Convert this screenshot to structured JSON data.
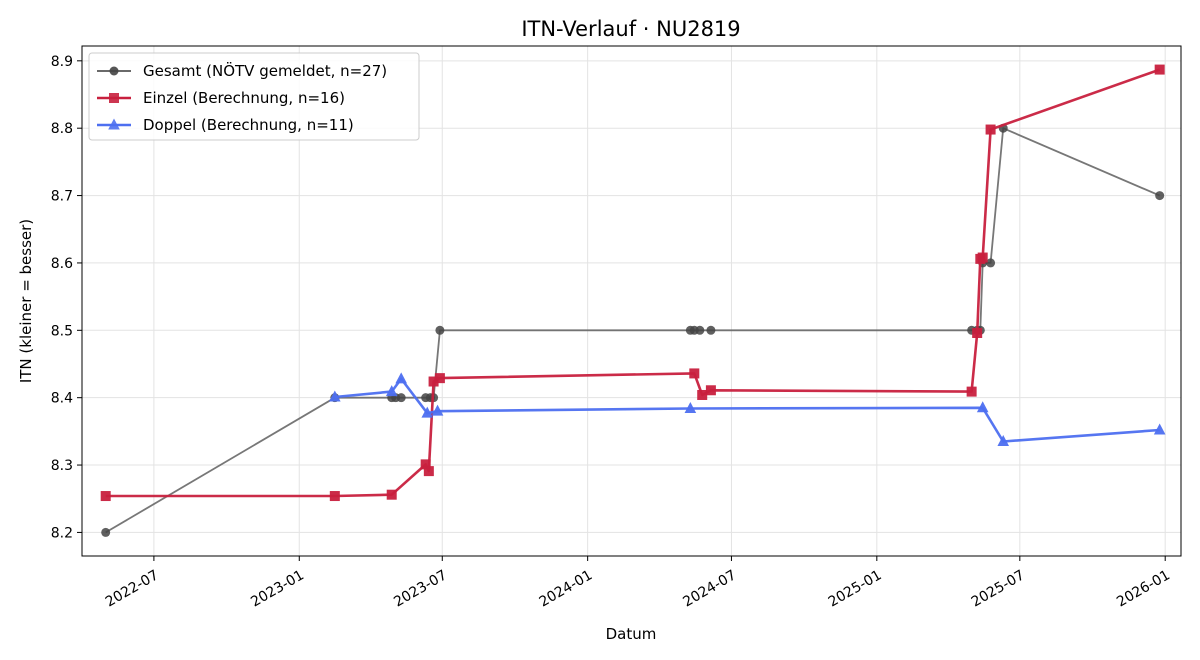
{
  "chart_data": {
    "type": "line",
    "title": "ITN-Verlauf · NU2819",
    "xlabel": "Datum",
    "ylabel": "ITN  (kleiner = besser)",
    "xlim": [
      "2022-04-01",
      "2026-01-21"
    ],
    "ylim": [
      8.165,
      8.922
    ],
    "x_ticks": [
      "2022-07",
      "2023-01",
      "2023-07",
      "2024-01",
      "2024-07",
      "2025-01",
      "2025-07",
      "2026-01"
    ],
    "y_ticks": [
      "8.2",
      "8.3",
      "8.4",
      "8.5",
      "8.6",
      "8.7",
      "8.8",
      "8.9"
    ],
    "grid": true,
    "legend_position": "top-left",
    "series": [
      {
        "name": "Gesamt (NÖTV gemeldet, n=27)",
        "color": "#555555",
        "marker": "circle",
        "points": [
          [
            "2022-05-01",
            8.2
          ],
          [
            "2023-02-15",
            8.4
          ],
          [
            "2023-04-28",
            8.4
          ],
          [
            "2023-05-03",
            8.4
          ],
          [
            "2023-05-10",
            8.4
          ],
          [
            "2023-06-10",
            8.4
          ],
          [
            "2023-06-16",
            8.4
          ],
          [
            "2023-06-20",
            8.4
          ],
          [
            "2023-06-28",
            8.5
          ],
          [
            "2024-05-10",
            8.5
          ],
          [
            "2024-05-15",
            8.5
          ],
          [
            "2024-05-22",
            8.5
          ],
          [
            "2024-06-05",
            8.5
          ],
          [
            "2025-05-01",
            8.5
          ],
          [
            "2025-05-08",
            8.5
          ],
          [
            "2025-05-12",
            8.5
          ],
          [
            "2025-05-15",
            8.6
          ],
          [
            "2025-05-25",
            8.6
          ],
          [
            "2025-06-10",
            8.8
          ],
          [
            "2025-12-25",
            8.7
          ]
        ]
      },
      {
        "name": "Einzel (Berechnung, n=16)",
        "color": "#c8203e",
        "marker": "square",
        "points": [
          [
            "2022-05-01",
            8.254
          ],
          [
            "2023-02-15",
            8.254
          ],
          [
            "2023-04-28",
            8.256
          ],
          [
            "2023-06-10",
            8.301
          ],
          [
            "2023-06-14",
            8.291
          ],
          [
            "2023-06-20",
            8.424
          ],
          [
            "2023-06-28",
            8.429
          ],
          [
            "2024-05-15",
            8.436
          ],
          [
            "2024-05-25",
            8.404
          ],
          [
            "2024-06-05",
            8.411
          ],
          [
            "2025-05-01",
            8.409
          ],
          [
            "2025-05-08",
            8.496
          ],
          [
            "2025-05-12",
            8.606
          ],
          [
            "2025-05-15",
            8.608
          ],
          [
            "2025-05-25",
            8.798
          ],
          [
            "2025-12-25",
            8.887
          ]
        ]
      },
      {
        "name": "Doppel (Berechnung, n=11)",
        "color": "#4d6ff0",
        "marker": "triangle",
        "points": [
          [
            "2023-02-15",
            8.401
          ],
          [
            "2023-04-28",
            8.409
          ],
          [
            "2023-05-10",
            8.428
          ],
          [
            "2023-06-12",
            8.377
          ],
          [
            "2023-06-25",
            8.38
          ],
          [
            "2024-05-10",
            8.384
          ],
          [
            "2025-05-15",
            8.385
          ],
          [
            "2025-06-10",
            8.335
          ],
          [
            "2025-12-25",
            8.352
          ]
        ]
      }
    ]
  }
}
